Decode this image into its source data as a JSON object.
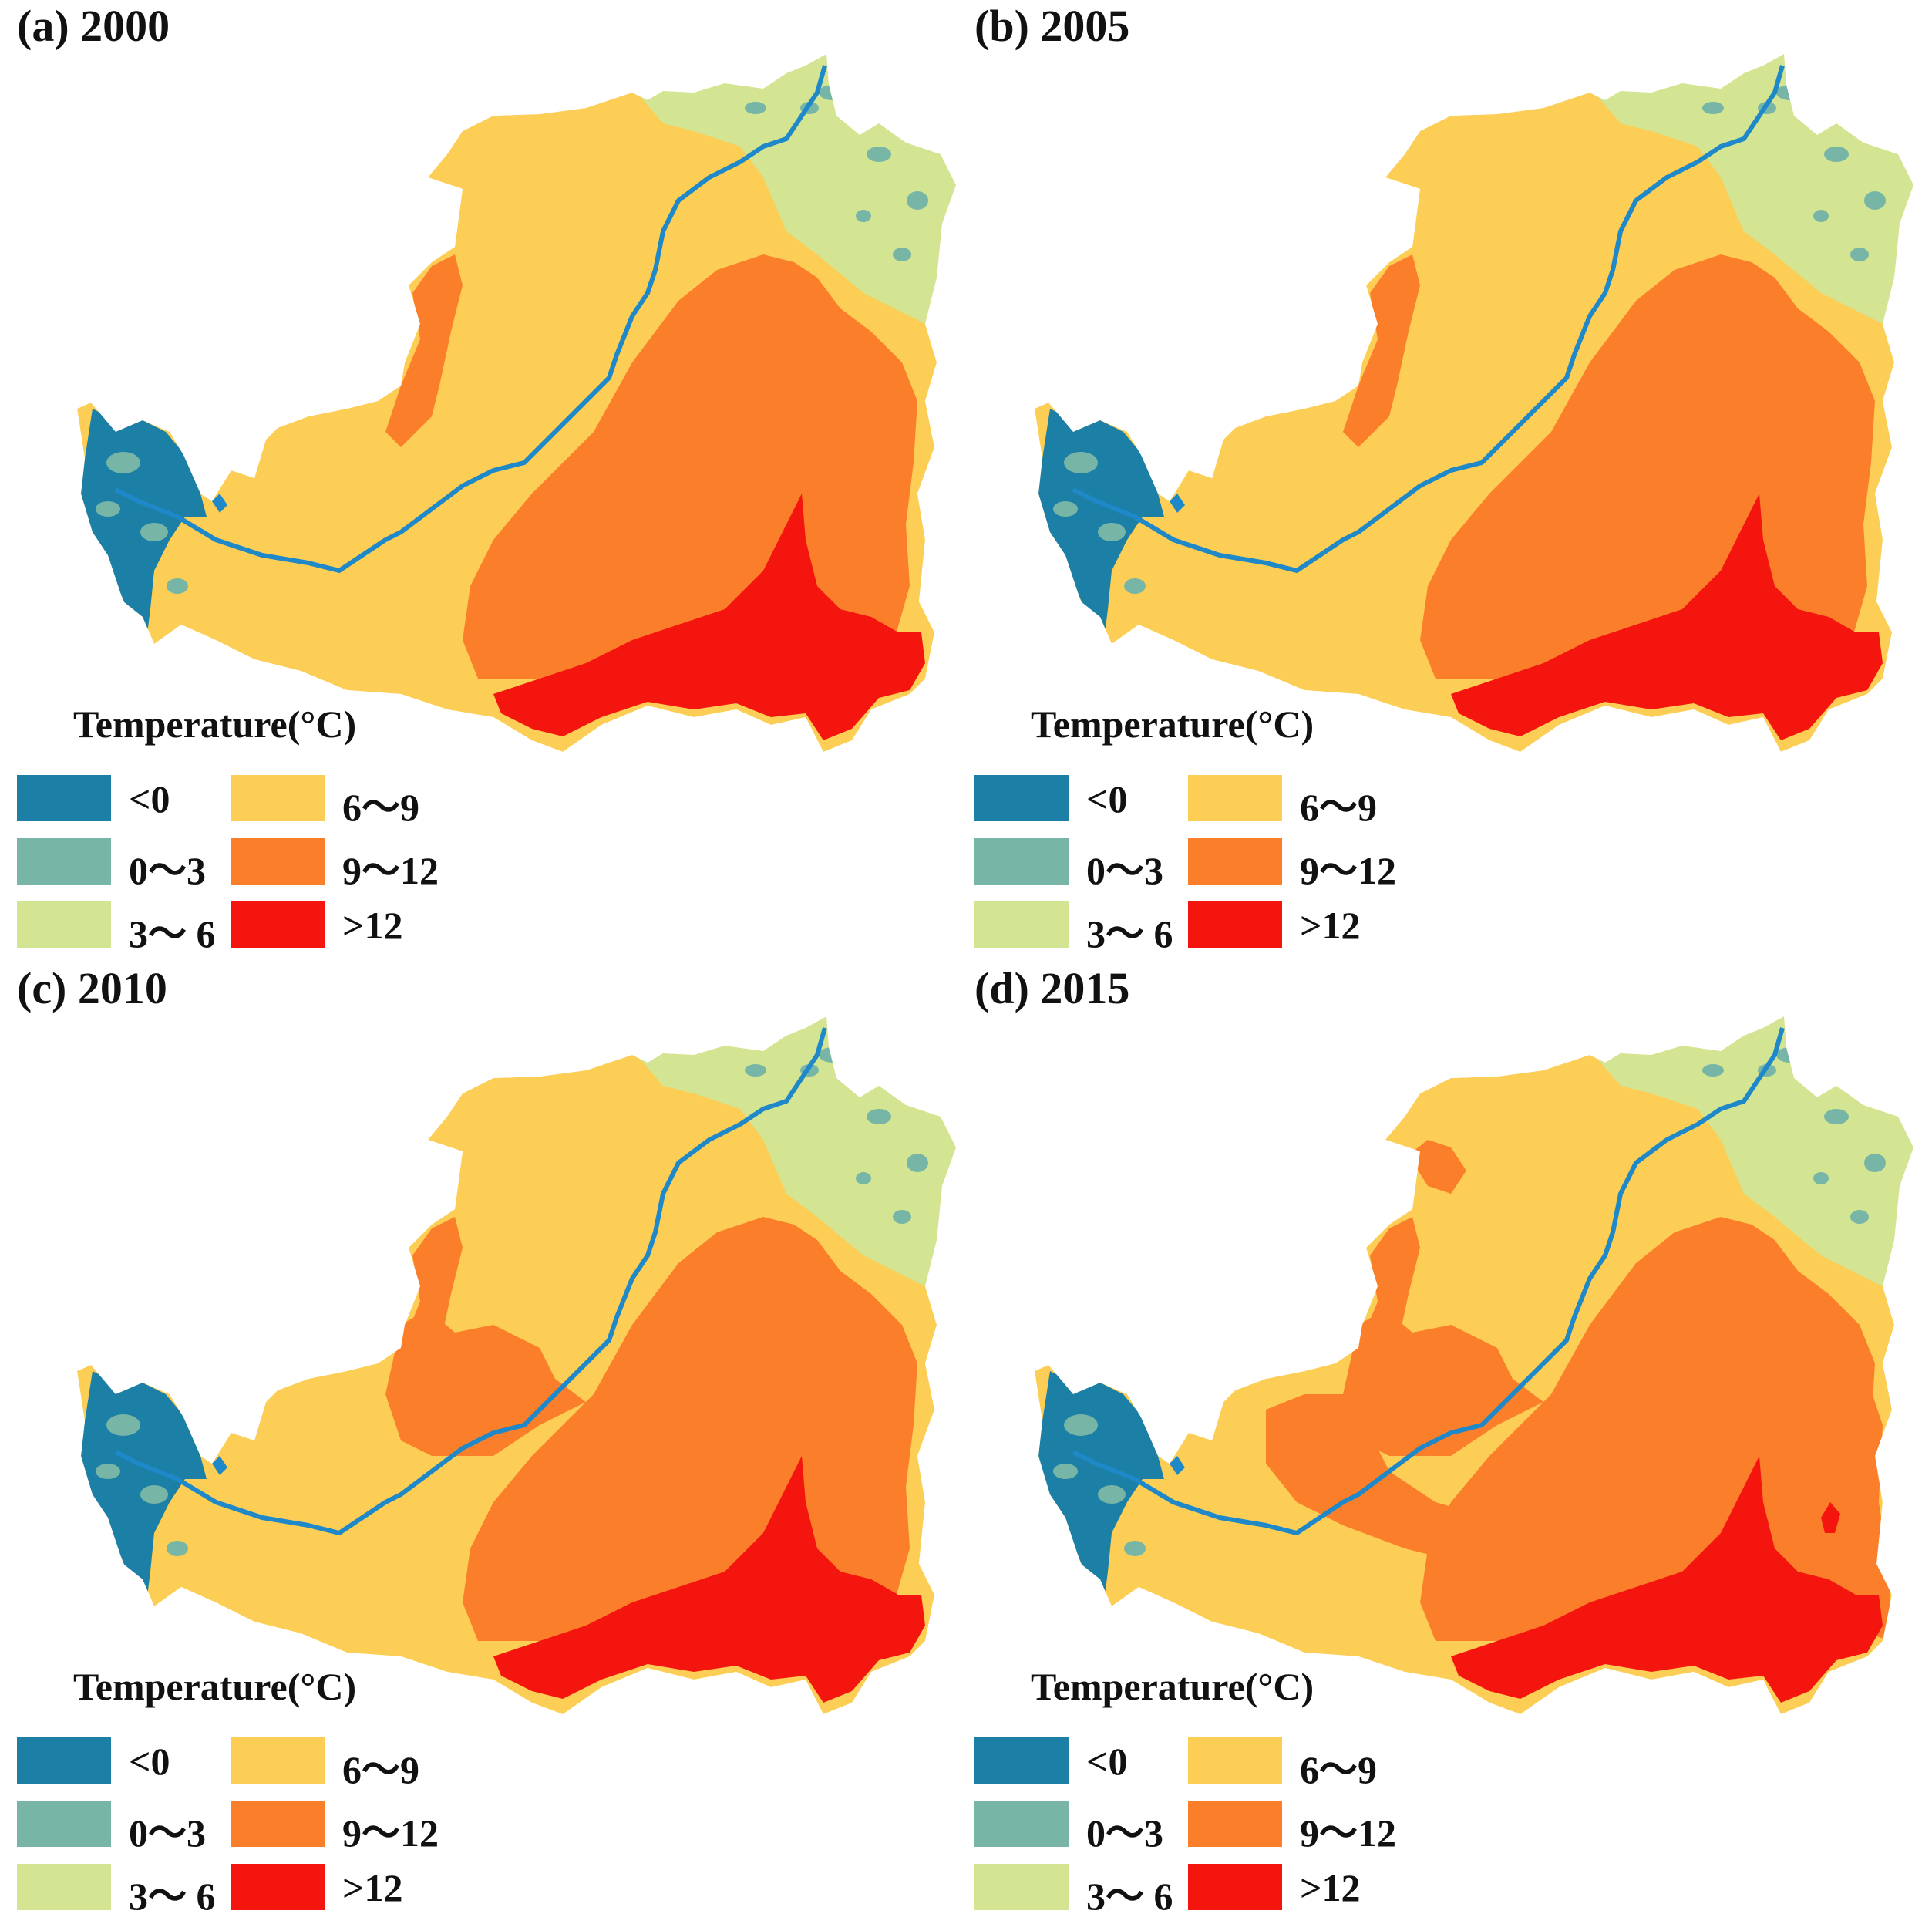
{
  "legend_title": "Temperature(°C)",
  "legend": [
    {
      "label": "<0",
      "color": "#1c7fa6"
    },
    {
      "label": "0～3",
      "color": "#77b6a6"
    },
    {
      "label": "3～ 6",
      "color": "#d3e493"
    },
    {
      "label": "6～9",
      "color": "#fcce55"
    },
    {
      "label": "9～12",
      "color": "#fb7f2b"
    },
    {
      "label": ">12",
      "color": "#f5150f"
    }
  ],
  "river_color": "#1e88c8",
  "panels": [
    {
      "title": "(a) 2000",
      "scenario": 0
    },
    {
      "title": "(b) 2005",
      "scenario": 0
    },
    {
      "title": "(c) 2010",
      "scenario": 1
    },
    {
      "title": "(d) 2015",
      "scenario": 2
    }
  ]
}
